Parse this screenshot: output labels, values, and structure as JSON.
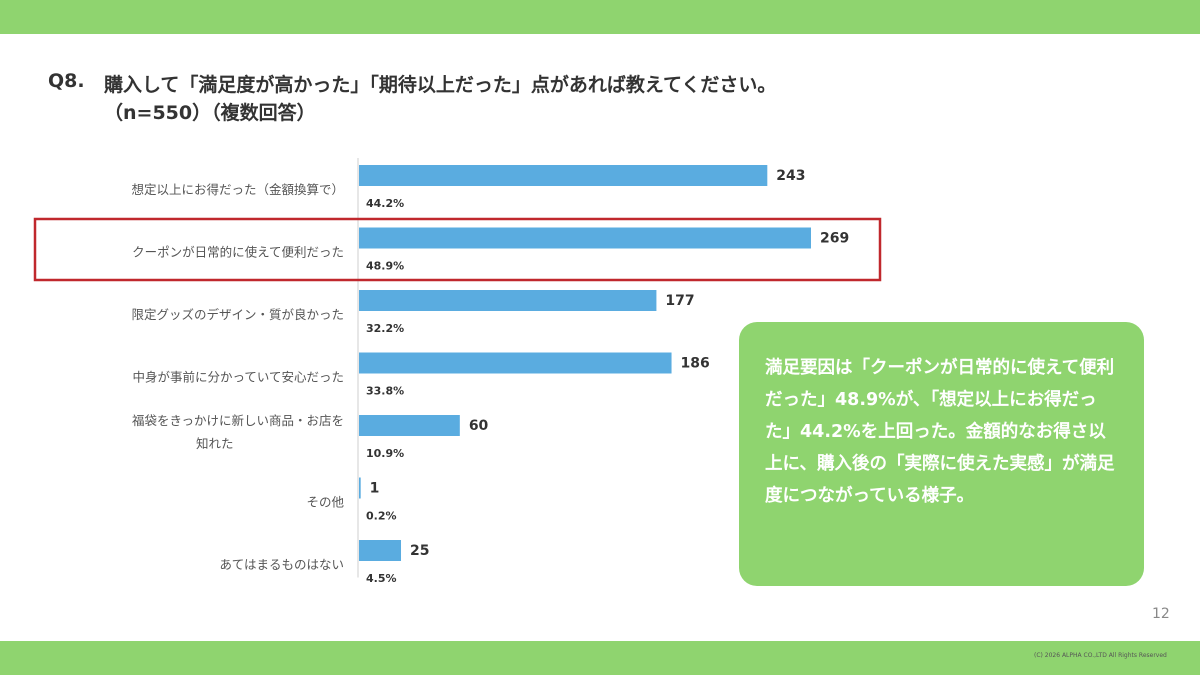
{
  "header": {
    "question_number": "Q8.",
    "title": "購入して「満足度が高かった」「期待以上だった」点があれば教えてください。",
    "subtitle": "（n=550）（複数回答）"
  },
  "chart_data": {
    "type": "bar",
    "orientation": "horizontal",
    "categories": [
      "想定以上にお得だった（金額換算で）",
      "クーポンが日常的に使えて便利だった",
      "限定グッズのデザイン・質が良かった",
      "中身が事前に分かっていて安心だった",
      "福袋をきっかけに新しい商品・お店を知れた",
      "その他",
      "あてはまるものはない"
    ],
    "values": [
      243,
      269,
      177,
      186,
      60,
      1,
      25
    ],
    "percent_labels": [
      "44.2%",
      "48.9%",
      "32.2%",
      "33.8%",
      "10.9%",
      "0.2%",
      "4.5%"
    ],
    "bar_color": "#5aace0",
    "highlight_index": 1,
    "highlight_color": "#c0282d",
    "xlim": [
      0,
      269
    ],
    "grid": false,
    "legend": "none"
  },
  "callout": {
    "text": "満足要因は「クーポンが日常的に使えて便利だった」48.9%が、「想定以上にお得だった」44.2%を上回った。金額的なお得さ以上に、購入後の「実際に使えた実感」が満足度につながっている様子。",
    "background": "#8fd46f"
  },
  "footer": {
    "page_number": "12",
    "copyright": "(C) 2026 ALPHA CO.,LTD All Rights Reserved"
  },
  "theme": {
    "accent": "#8fd46f"
  }
}
